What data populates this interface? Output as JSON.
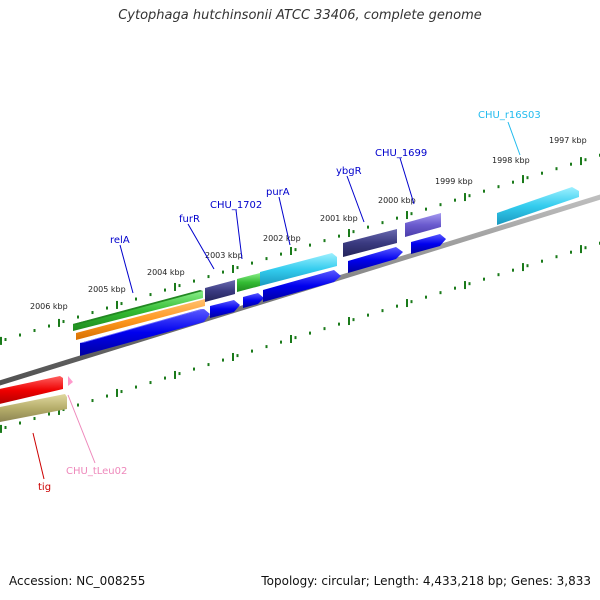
{
  "title": "Cytophaga hutchinsonii ATCC 33406, complete genome",
  "footer": {
    "accession": "Accession: NC_008255",
    "summary": "Topology: circular; Length: 4,433,218 bp; Genes: 3,833"
  },
  "scale_labels": [
    "2006 kbp",
    "2005 kbp",
    "2004 kbp",
    "2003 kbp",
    "2002 kbp",
    "2001 kbp",
    "2000 kbp",
    "1999 kbp",
    "1998 kbp",
    "1997 kbp"
  ],
  "gene_labels": {
    "relA": "relA",
    "furR": "furR",
    "chu1702": "CHU_1702",
    "purA": "purA",
    "ybgR": "ybgR",
    "chu1699": "CHU_1699",
    "chu_r16S03": "CHU_r16S03",
    "tig": "tig",
    "chu_tLeu02": "CHU_tLeu02"
  },
  "colors": {
    "backbone": "#808080",
    "ticks": "#1a7a1a",
    "gene_blue": "#0000ee",
    "gene_navy": "#3a3a80",
    "gene_violet": "#6a5acd",
    "gene_green": "#33bb33",
    "gene_orange": "#ff9922",
    "gene_cyan": "#33ccee",
    "gene_red": "#ee0000",
    "gene_olive": "#b5ad6a",
    "trna_pink": "#ff99cc",
    "label_blue": "#0000cc",
    "label_cyan": "#22bbee",
    "label_red": "#cc0000",
    "label_pink": "#ee88bb"
  }
}
